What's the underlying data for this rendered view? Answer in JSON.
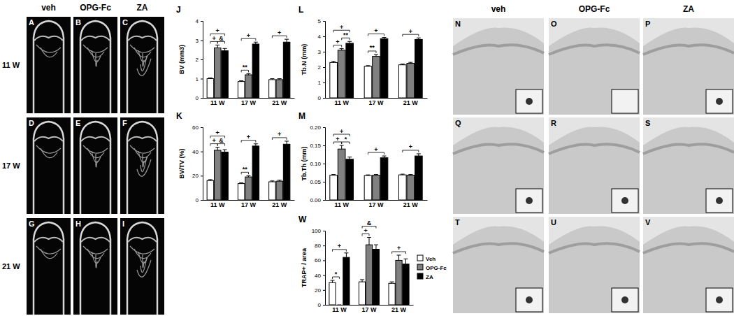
{
  "ct_images": {
    "columns": [
      "veh",
      "OPG-Fc",
      "ZA"
    ],
    "rows": [
      "11 W",
      "17 W",
      "21 W"
    ],
    "panels": [
      [
        "A",
        "B",
        "C"
      ],
      [
        "D",
        "E",
        "F"
      ],
      [
        "G",
        "H",
        "I"
      ]
    ]
  },
  "histology_images": {
    "columns": [
      "veh",
      "OPG-Fc",
      "ZA"
    ],
    "panels": [
      [
        "N",
        "O",
        "P"
      ],
      [
        "Q",
        "R",
        "S"
      ],
      [
        "T",
        "U",
        "V"
      ]
    ]
  },
  "chart_data": [
    {
      "type": "bar",
      "title": "J",
      "y_label": "BV (mm3)",
      "categories": [
        "11 W",
        "17 W",
        "21 W"
      ],
      "series": [
        {
          "color": "#ffffff",
          "values": [
            1.0,
            0.85,
            0.95
          ],
          "errors": [
            0.04,
            0.04,
            0.05
          ]
        },
        {
          "color": "#808080",
          "values": [
            2.6,
            1.2,
            0.95
          ],
          "errors": [
            0.15,
            0.06,
            0.05
          ]
        },
        {
          "color": "#000000",
          "values": [
            2.45,
            2.8,
            2.9
          ],
          "errors": [
            0.12,
            0.1,
            0.15
          ]
        }
      ],
      "ylim": [
        0,
        4
      ],
      "yticks": [
        0,
        1,
        2,
        3,
        4
      ],
      "annotations": [
        {
          "text": "+",
          "category": 0,
          "from": 0,
          "to": 2
        },
        {
          "text": "+",
          "category": 0,
          "from": 0,
          "to": 1
        },
        {
          "text": "&",
          "category": 0,
          "from": 1,
          "to": 2
        },
        {
          "text": "+",
          "category": 1,
          "from": 0,
          "to": 2
        },
        {
          "text": "**",
          "category": 1,
          "from": 0,
          "to": 1
        },
        {
          "text": "+",
          "category": 2,
          "from": 0,
          "to": 2
        }
      ]
    },
    {
      "type": "bar",
      "title": "K",
      "y_label": "BV/TV (%)",
      "categories": [
        "11 W",
        "17 W",
        "21 W"
      ],
      "series": [
        {
          "color": "#ffffff",
          "values": [
            16,
            13.5,
            15
          ],
          "errors": [
            0.8,
            0.6,
            0.7
          ]
        },
        {
          "color": "#808080",
          "values": [
            41,
            19,
            15.5
          ],
          "errors": [
            2.5,
            1.0,
            0.8
          ]
        },
        {
          "color": "#000000",
          "values": [
            39.5,
            44.5,
            46
          ],
          "errors": [
            2,
            1.8,
            2.5
          ]
        }
      ],
      "ylim": [
        0,
        60
      ],
      "yticks": [
        0,
        20,
        40,
        60
      ],
      "annotations": [
        {
          "text": "+",
          "category": 0,
          "from": 0,
          "to": 2
        },
        {
          "text": "+",
          "category": 0,
          "from": 0,
          "to": 1
        },
        {
          "text": "&",
          "category": 0,
          "from": 1,
          "to": 2
        },
        {
          "text": "+",
          "category": 1,
          "from": 0,
          "to": 2
        },
        {
          "text": "**",
          "category": 1,
          "from": 0,
          "to": 1
        },
        {
          "text": "+",
          "category": 2,
          "from": 0,
          "to": 2
        }
      ]
    },
    {
      "type": "bar",
      "title": "L",
      "y_label": "Tb.N (mm)",
      "categories": [
        "11 W",
        "17 W",
        "21 W"
      ],
      "series": [
        {
          "color": "#ffffff",
          "values": [
            2.3,
            2.05,
            2.15
          ],
          "errors": [
            0.08,
            0.05,
            0.05
          ]
        },
        {
          "color": "#808080",
          "values": [
            3.1,
            2.7,
            2.25
          ],
          "errors": [
            0.1,
            0.12,
            0.06
          ]
        },
        {
          "color": "#000000",
          "values": [
            3.55,
            3.85,
            3.8
          ],
          "errors": [
            0.12,
            0.08,
            0.1
          ]
        }
      ],
      "ylim": [
        0,
        5
      ],
      "yticks": [
        0,
        1,
        2,
        3,
        4,
        5
      ],
      "annotations": [
        {
          "text": "+",
          "category": 0,
          "from": 0,
          "to": 2
        },
        {
          "text": "+",
          "category": 0,
          "from": 0,
          "to": 1
        },
        {
          "text": "**",
          "category": 0,
          "from": 1,
          "to": 2
        },
        {
          "text": "+",
          "category": 1,
          "from": 0,
          "to": 2
        },
        {
          "text": "**",
          "category": 1,
          "from": 0,
          "to": 1
        },
        {
          "text": "+",
          "category": 2,
          "from": 0,
          "to": 2
        }
      ]
    },
    {
      "type": "bar",
      "title": "M",
      "y_label": "Tb.Th (mm)",
      "categories": [
        "11 W",
        "17 W",
        "21 W"
      ],
      "series": [
        {
          "color": "#ffffff",
          "values": [
            0.068,
            0.067,
            0.069
          ],
          "errors": [
            0.002,
            0.002,
            0.002
          ]
        },
        {
          "color": "#808080",
          "values": [
            0.14,
            0.068,
            0.068
          ],
          "errors": [
            0.01,
            0.002,
            0.002
          ]
        },
        {
          "color": "#000000",
          "values": [
            0.112,
            0.116,
            0.121
          ],
          "errors": [
            0.006,
            0.005,
            0.006
          ]
        }
      ],
      "ylim": [
        0,
        0.2
      ],
      "yticks": [
        {
          "value": 0,
          "label": "0.00"
        },
        0.05,
        {
          "value": 0.1,
          "label": "0.10"
        },
        0.15,
        {
          "value": 0.2,
          "label": "0.20"
        }
      ],
      "annotations": [
        {
          "text": "+",
          "category": 0,
          "from": 0,
          "to": 2
        },
        {
          "text": "+",
          "category": 0,
          "from": 0,
          "to": 1
        },
        {
          "text": "*",
          "category": 0,
          "from": 1,
          "to": 2
        },
        {
          "text": "+",
          "category": 1,
          "from": 0,
          "to": 2
        },
        {
          "text": "+",
          "category": 2,
          "from": 0,
          "to": 2
        }
      ]
    },
    {
      "type": "bar",
      "title": "W",
      "y_label": "TRAP+ / area",
      "categories": [
        "11 W",
        "17 W",
        "21 W"
      ],
      "series": [
        {
          "name": "Veh",
          "color": "#ffffff",
          "values": [
            30,
            31,
            29
          ],
          "errors": [
            3,
            3,
            2
          ]
        },
        {
          "name": "OPG-Fc",
          "color": "#808080",
          "values": [
            0,
            81,
            60
          ],
          "errors": [
            0,
            10,
            7
          ]
        },
        {
          "name": "ZA",
          "color": "#000000",
          "values": [
            64,
            75,
            55
          ],
          "errors": [
            6,
            6,
            7
          ]
        }
      ],
      "ylim": [
        0,
        100
      ],
      "yticks": [
        0,
        20,
        40,
        60,
        80,
        100
      ],
      "legend": "right",
      "annotations": [
        {
          "text": "*",
          "category": 0,
          "from": 0,
          "to": 1
        },
        {
          "text": "+",
          "category": 0,
          "from": 0,
          "to": 2
        },
        {
          "text": "+",
          "category": 1,
          "from": 0,
          "to": 1
        },
        {
          "text": "&",
          "category": 1,
          "from": 0,
          "to": 2
        },
        {
          "text": "+",
          "category": 2,
          "from": 0,
          "to": 2
        }
      ]
    }
  ]
}
